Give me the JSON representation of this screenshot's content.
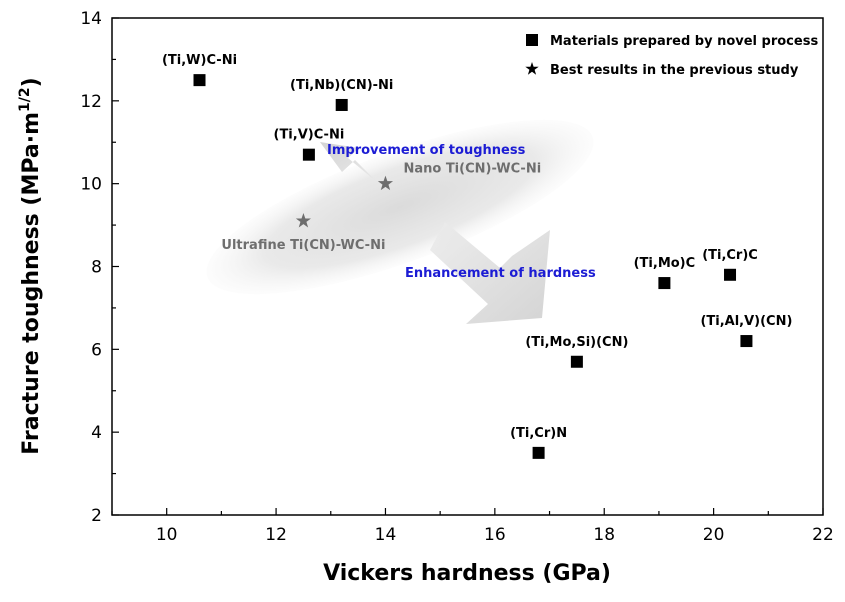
{
  "chart_data": {
    "type": "scatter",
    "xlabel": "Vickers hardness (GPa)",
    "ylabel_main": "Fracture toughness (MPa·m",
    "ylabel_sup": "1/2",
    "ylabel_end": ")",
    "xlim": [
      9,
      22
    ],
    "ylim": [
      2,
      14
    ],
    "xticks": [
      10,
      12,
      14,
      16,
      18,
      20,
      22
    ],
    "yticks": [
      2,
      4,
      6,
      8,
      10,
      12,
      14
    ],
    "grid": false,
    "legend_position": "top-right",
    "series": [
      {
        "name": "Materials prepared by novel process",
        "marker": "square",
        "color": "#000000",
        "points": [
          {
            "x": 10.6,
            "y": 12.5,
            "label": "(Ti,W)C-Ni"
          },
          {
            "x": 13.2,
            "y": 11.9,
            "label": "(Ti,Nb)(CN)-Ni"
          },
          {
            "x": 12.6,
            "y": 10.7,
            "label": "(Ti,V)C-Ni"
          },
          {
            "x": 19.1,
            "y": 7.6,
            "label": "(Ti,Mo)C"
          },
          {
            "x": 20.3,
            "y": 7.8,
            "label": "(Ti,Cr)C"
          },
          {
            "x": 20.6,
            "y": 6.2,
            "label": "(Ti,Al,V)(CN)"
          },
          {
            "x": 17.5,
            "y": 5.7,
            "label": "(Ti,Mo,Si)(CN)"
          },
          {
            "x": 16.8,
            "y": 3.5,
            "label": "(Ti,Cr)N"
          }
        ]
      },
      {
        "name": "Best results in the previous study",
        "marker": "star",
        "color": "#6e6e6e",
        "points": [
          {
            "x": 14.0,
            "y": 10.0,
            "label": "Nano Ti(CN)-WC-Ni"
          },
          {
            "x": 12.5,
            "y": 9.1,
            "label": "Ultrafine Ti(CN)-WC-Ni"
          }
        ]
      }
    ],
    "annotations": [
      {
        "text": "Improvement of toughness",
        "color": "#1c1cd4"
      },
      {
        "text": "Enhancement of hardness",
        "color": "#1c1cd4"
      }
    ]
  }
}
